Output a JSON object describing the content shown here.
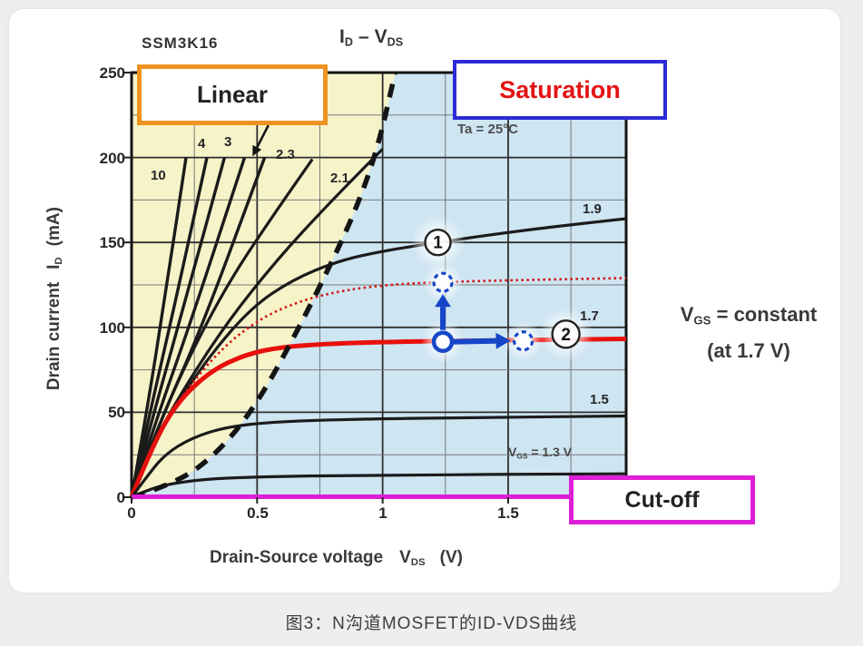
{
  "header": {
    "device": "SSM3K16",
    "title": {
      "sym1": "I",
      "sub1": "D",
      "sep": "–",
      "sym2": "V",
      "sub2": "DS"
    }
  },
  "regions": {
    "linear": {
      "label": "Linear",
      "border_color": "#ef9221"
    },
    "saturation": {
      "label": "Saturation",
      "border_color": "#2b2bd6",
      "text_color": "#e31313"
    },
    "cutoff": {
      "label": "Cut-off",
      "border_color": "#de1fd8"
    }
  },
  "condition_label": "Ta = 25°C",
  "axes": {
    "x": {
      "name": "Drain-Source voltage",
      "sym": "V",
      "sub": "DS",
      "unit": "(V)",
      "ticks": [
        "0",
        "0.5",
        "1",
        "1.5"
      ]
    },
    "y": {
      "name": "Drain current",
      "sym": "I",
      "sub": "D",
      "unit": "(mA)",
      "ticks": [
        "250",
        "200",
        "150",
        "100",
        "50",
        "0"
      ]
    }
  },
  "notes": {
    "vgs_constant": {
      "sym": "V",
      "sub": "GS",
      "rest": "= constant",
      "line2": "(at 1.7 V)"
    },
    "vgs_13": {
      "sym": "V",
      "sub": "GS",
      "rest": "= 1.3 V"
    }
  },
  "annotation_labels": {
    "point1": "1",
    "point2": "2"
  },
  "caption": "图3：N沟道MOSFET的ID-VDS曲线",
  "chart_data": {
    "type": "line",
    "title": "ID - VDS",
    "device": "SSM3K16",
    "condition": "Ta = 25°C",
    "xlabel": "Drain-Source voltage VDS (V)",
    "ylabel": "Drain current ID (mA)",
    "xlim": [
      0,
      1.97
    ],
    "ylim": [
      0,
      250
    ],
    "x_major_ticks": [
      0,
      0.5,
      1,
      1.5
    ],
    "y_major_ticks": [
      0,
      50,
      100,
      150,
      200,
      250
    ],
    "x_grid_step": 0.25,
    "y_grid_step": 25,
    "grid": true,
    "regions": {
      "linear_fill": "#f6f3c8",
      "saturation_fill": "#cee5f2"
    },
    "series": [
      {
        "name": "VGS = 10 V",
        "vgs": 10,
        "label": "10",
        "color": "#1b1b1b",
        "width": 3.4,
        "style": "solid",
        "points": [
          [
            0,
            0
          ],
          [
            0.06,
            50
          ],
          [
            0.13,
            115
          ],
          [
            0.217,
            200
          ]
        ]
      },
      {
        "name": "VGS = 4 V",
        "vgs": 4,
        "label": "4",
        "color": "#1b1b1b",
        "width": 3.4,
        "style": "solid",
        "points": [
          [
            0,
            0
          ],
          [
            0.07,
            48
          ],
          [
            0.17,
            112
          ],
          [
            0.3,
            200
          ]
        ]
      },
      {
        "name": "VGS = 3 V",
        "vgs": 3,
        "label": "3",
        "color": "#1b1b1b",
        "width": 3.4,
        "style": "solid",
        "points": [
          [
            0,
            0
          ],
          [
            0.08,
            45
          ],
          [
            0.2,
            108
          ],
          [
            0.37,
            200
          ]
        ]
      },
      {
        "name": "unlabeled steep curve",
        "vgs": null,
        "label": "",
        "color": "#1b1b1b",
        "width": 3.4,
        "style": "solid",
        "points": [
          [
            0,
            0
          ],
          [
            0.09,
            42
          ],
          [
            0.24,
            105
          ],
          [
            0.45,
            200
          ]
        ]
      },
      {
        "name": "unlabeled steep curve",
        "vgs": null,
        "label": "",
        "color": "#1b1b1b",
        "width": 3.4,
        "style": "solid",
        "points": [
          [
            0,
            0
          ],
          [
            0.1,
            40
          ],
          [
            0.28,
            100
          ],
          [
            0.53,
            200
          ]
        ]
      },
      {
        "name": "VGS = 2.3 V",
        "vgs": 2.3,
        "label": "2.3",
        "color": "#1b1b1b",
        "width": 3.2,
        "style": "solid",
        "points": [
          [
            0,
            0
          ],
          [
            0.09,
            36
          ],
          [
            0.22,
            80
          ],
          [
            0.38,
            125
          ],
          [
            0.55,
            163
          ],
          [
            0.72,
            199
          ]
        ]
      },
      {
        "name": "VGS = 2.1 V",
        "vgs": 2.1,
        "label": "2.1",
        "color": "#1b1b1b",
        "width": 3.2,
        "style": "solid",
        "points": [
          [
            0,
            0
          ],
          [
            0.08,
            30
          ],
          [
            0.2,
            62
          ],
          [
            0.38,
            103
          ],
          [
            0.58,
            140
          ],
          [
            0.78,
            172
          ],
          [
            1.0,
            205
          ]
        ]
      },
      {
        "name": "VGS = 1.9 V",
        "vgs": 1.9,
        "label": "1.9",
        "color": "#1b1b1b",
        "width": 3.2,
        "style": "solid",
        "points": [
          [
            0,
            0
          ],
          [
            0.07,
            26
          ],
          [
            0.18,
            55
          ],
          [
            0.32,
            85
          ],
          [
            0.48,
            112
          ],
          [
            0.64,
            128
          ],
          [
            0.82,
            139
          ],
          [
            1.0,
            145
          ],
          [
            1.22,
            150
          ],
          [
            1.55,
            157
          ],
          [
            1.97,
            164
          ]
        ]
      },
      {
        "name": "VGS = 1.7 V (highlighted operating curve)",
        "vgs": 1.7,
        "label": "1.7",
        "color": "#e8100c",
        "width": 5,
        "style": "solid",
        "points": [
          [
            0,
            0
          ],
          [
            0.06,
            22
          ],
          [
            0.16,
            52
          ],
          [
            0.3,
            73
          ],
          [
            0.45,
            84
          ],
          [
            0.6,
            88.5
          ],
          [
            0.8,
            90.5
          ],
          [
            1.05,
            91.5
          ],
          [
            1.4,
            92.3
          ],
          [
            1.97,
            93.2
          ]
        ]
      },
      {
        "name": "raised-VGS trajectory (red dotted)",
        "vgs": null,
        "label": "",
        "color": "#d51414",
        "width": 2.6,
        "style": "dotted",
        "points": [
          [
            0,
            0
          ],
          [
            0.08,
            30
          ],
          [
            0.2,
            60
          ],
          [
            0.36,
            88
          ],
          [
            0.52,
            106
          ],
          [
            0.68,
            116
          ],
          [
            0.85,
            122
          ],
          [
            1.05,
            125.5
          ],
          [
            1.3,
            127
          ],
          [
            1.6,
            128
          ],
          [
            1.97,
            129
          ]
        ]
      },
      {
        "name": "VGS = 1.5 V",
        "vgs": 1.5,
        "label": "1.5",
        "color": "#1b1b1b",
        "width": 3.2,
        "style": "solid",
        "points": [
          [
            0,
            0
          ],
          [
            0.05,
            10
          ],
          [
            0.13,
            25
          ],
          [
            0.24,
            35
          ],
          [
            0.38,
            41.5
          ],
          [
            0.58,
            44.5
          ],
          [
            0.9,
            46
          ],
          [
            1.4,
            47
          ],
          [
            1.97,
            47.8
          ]
        ]
      },
      {
        "name": "VGS = 1.3 V",
        "vgs": 1.3,
        "label": "",
        "color": "#1b1b1b",
        "width": 3.2,
        "style": "solid",
        "points": [
          [
            0,
            0
          ],
          [
            0.06,
            4
          ],
          [
            0.14,
            7.5
          ],
          [
            0.28,
            10.5
          ],
          [
            0.5,
            12
          ],
          [
            0.9,
            13
          ],
          [
            1.97,
            13.8
          ]
        ]
      }
    ],
    "boundary": {
      "name": "linear-saturation boundary",
      "style": "dashed",
      "color": "#141414",
      "width": 5.5,
      "points": [
        [
          0,
          0
        ],
        [
          0.18,
          8
        ],
        [
          0.35,
          27
        ],
        [
          0.5,
          55
        ],
        [
          0.65,
          95
        ],
        [
          0.78,
          133
        ],
        [
          0.89,
          168
        ],
        [
          0.98,
          205
        ],
        [
          1.05,
          250
        ]
      ]
    },
    "cutoff_line": {
      "name": "cut-off line (ID = 0)",
      "color": "#de1fd8",
      "width": 5,
      "points": [
        [
          0,
          0.3
        ],
        [
          1.97,
          0.3
        ]
      ]
    },
    "annotations": {
      "marker_color": "#1646c8",
      "operating_point": {
        "vds": 1.24,
        "id_mA": 91.5
      },
      "shifted_up_point": {
        "vds": 1.24,
        "id_mA": 126.5
      },
      "shifted_right_point": {
        "vds": 1.56,
        "id_mA": 92
      },
      "circled_1": {
        "label": "1",
        "vds": 1.22,
        "id_mA": 150
      },
      "circled_2": {
        "label": "2",
        "vds": 1.73,
        "id_mA": 96
      },
      "direction_arrow": {
        "from": [
          0.545,
          219
        ],
        "to": [
          0.5,
          206
        ]
      }
    }
  }
}
